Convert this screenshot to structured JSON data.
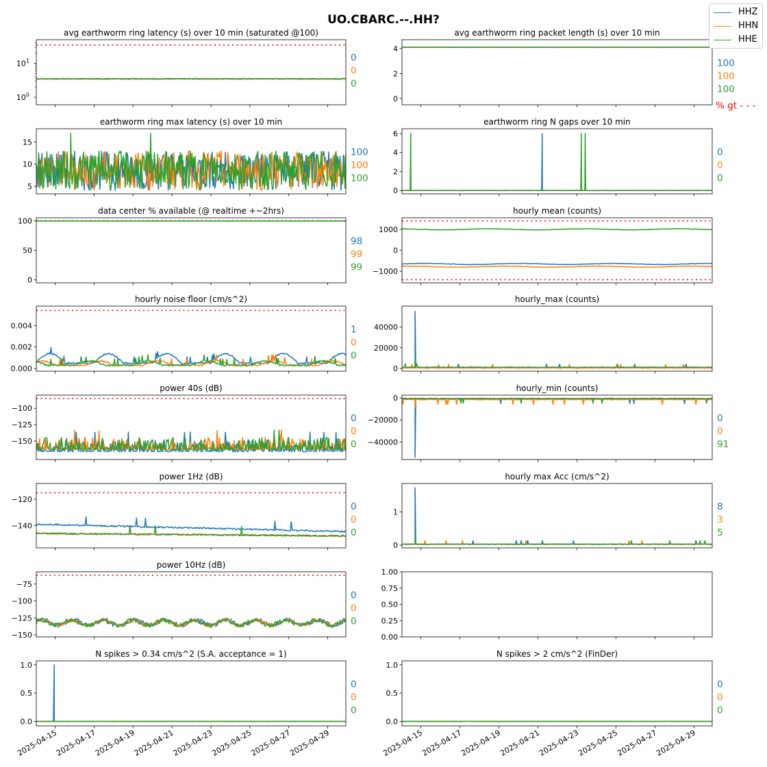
{
  "figure": {
    "title": "UO.CBARC.--.HH?",
    "legend": [
      {
        "name": "HHZ",
        "color": "#1f77b4"
      },
      {
        "name": "HHN",
        "color": "#ff7f0e"
      },
      {
        "name": "HHE",
        "color": "#2ca02c"
      }
    ],
    "x_tick_labels": [
      "2025-04-15",
      "2025-04-17",
      "2025-04-19",
      "2025-04-21",
      "2025-04-23",
      "2025-04-25",
      "2025-04-27",
      "2025-04-29"
    ],
    "x_range": [
      "2025-04-14",
      "2025-04-30"
    ],
    "threshold_color": "#ff0000",
    "pct_gt_label": "% gt - - -"
  },
  "chart_data": [
    {
      "id": "p1",
      "type": "line",
      "title": "avg earthworm ring latency (s)   over 10 min (saturated @100)",
      "yscale": "log",
      "ylim": [
        0.6,
        50
      ],
      "yticks": [
        1,
        10
      ],
      "ytick_labels": [
        "10^0",
        "10^1"
      ],
      "threshold": [
        35
      ],
      "series_levels": [
        3.5,
        3.5,
        3.5
      ],
      "pct_labels": [
        "0",
        "0",
        "0"
      ],
      "style": "flat"
    },
    {
      "id": "p2",
      "type": "line",
      "title": "avg earthworm ring packet length (s)   over 10 min",
      "ylim": [
        -0.5,
        4.7
      ],
      "yticks": [
        0,
        2,
        4
      ],
      "ytick_labels": [
        "0",
        "2",
        "4"
      ],
      "threshold": [],
      "series_levels": [
        4.1,
        4.1,
        4.1
      ],
      "pct_labels": [
        "100",
        "100",
        "100"
      ],
      "style": "flat"
    },
    {
      "id": "p3",
      "type": "line",
      "title": "earthworm ring max latency (s)   over 10 min",
      "ylim": [
        3.3,
        18
      ],
      "yticks": [
        5,
        10,
        15
      ],
      "ytick_labels": [
        "5",
        "10",
        "15"
      ],
      "threshold": [],
      "series_levels": [
        8,
        8,
        8
      ],
      "pct_labels": [
        "100",
        "100",
        "100"
      ],
      "style": "noisy",
      "spikes": [
        {
          "x": 1.8,
          "y": 17,
          "s": 2
        },
        {
          "x": 5.9,
          "y": 17,
          "s": 2
        }
      ]
    },
    {
      "id": "p4",
      "type": "line",
      "title": "earthworm ring N gaps   over 10 min",
      "ylim": [
        -0.35,
        6.5
      ],
      "yticks": [
        0,
        2,
        4,
        6
      ],
      "ytick_labels": [
        "0",
        "2",
        "4",
        "6"
      ],
      "threshold": [
        0
      ],
      "series_levels": [
        0,
        0,
        0
      ],
      "pct_labels": [
        "0",
        "0",
        "0"
      ],
      "style": "flat",
      "spikes": [
        {
          "x": 0.48,
          "y": 6,
          "s": 2
        },
        {
          "x": 7.22,
          "y": 6,
          "s": 0
        },
        {
          "x": 9.22,
          "y": 6,
          "s": 2
        },
        {
          "x": 9.42,
          "y": 6,
          "s": 2
        }
      ]
    },
    {
      "id": "p5",
      "type": "line",
      "title": "data center % available (@ realtime +~2hrs)",
      "ylim": [
        -5,
        105
      ],
      "yticks": [
        0,
        50,
        100
      ],
      "ytick_labels": [
        "0",
        "50",
        "100"
      ],
      "threshold": [
        100
      ],
      "series_levels": [
        99.5,
        99.5,
        99.5
      ],
      "pct_labels": [
        "98",
        "99",
        "99"
      ],
      "style": "flat"
    },
    {
      "id": "p6",
      "type": "line",
      "title": "hourly mean (counts)",
      "ylim": [
        -1550,
        1550
      ],
      "yticks": [
        -1000,
        0,
        1000
      ],
      "ytick_labels": [
        "−1000",
        "0",
        "1000"
      ],
      "threshold": [
        1400,
        -1400
      ],
      "series_levels": [
        -650,
        -780,
        1000
      ],
      "pct_labels": [],
      "style": "gapped"
    },
    {
      "id": "p7",
      "type": "line",
      "title": "hourly noise floor (cm/s^2)",
      "ylim": [
        -0.00025,
        0.0058
      ],
      "yticks": [
        0,
        0.002,
        0.004
      ],
      "ytick_labels": [
        "0.000",
        "0.002",
        "0.004"
      ],
      "threshold": [
        0.0054
      ],
      "series_levels": [
        0.0005,
        0.0003,
        0.0003
      ],
      "pct_labels": [
        "1",
        "0",
        "0"
      ],
      "style": "wavy"
    },
    {
      "id": "p8",
      "type": "line",
      "title": "hourly_max (counts)",
      "ylim": [
        -2500,
        60000
      ],
      "yticks": [
        0,
        20000,
        40000
      ],
      "ytick_labels": [
        "0",
        "20000",
        "40000"
      ],
      "threshold": [],
      "series_levels": [
        800,
        600,
        1300
      ],
      "pct_labels": [],
      "style": "spiky",
      "spikes": [
        {
          "x": 0.7,
          "y": 55000,
          "s": 0
        },
        {
          "x": 0.7,
          "y": 8000,
          "s": 2
        },
        {
          "x": 0.7,
          "y": 6000,
          "s": 1
        }
      ]
    },
    {
      "id": "p9",
      "type": "line",
      "title": "power 40s (dB)",
      "ylim": [
        -178,
        -80
      ],
      "yticks": [
        -150,
        -125,
        -100
      ],
      "ytick_labels": [
        "−150",
        "−125",
        "−100"
      ],
      "threshold": [
        -85
      ],
      "series_levels": [
        -163,
        -160,
        -160
      ],
      "pct_labels": [
        "0",
        "0",
        "0"
      ],
      "style": "noisy-low"
    },
    {
      "id": "p10",
      "type": "line",
      "title": "hourly_min (counts)",
      "ylim": [
        -56000,
        2500
      ],
      "yticks": [
        -40000,
        -20000,
        0
      ],
      "ytick_labels": [
        "−40000",
        "−20000",
        "0"
      ],
      "threshold": [],
      "series_levels": [
        -800,
        -1500,
        -500
      ],
      "pct_labels": [
        "0",
        "0",
        "91"
      ],
      "style": "spiky-neg",
      "spikes": [
        {
          "x": 0.7,
          "y": -54000,
          "s": 0
        },
        {
          "x": 0.7,
          "y": -9000,
          "s": 1
        }
      ]
    },
    {
      "id": "p11",
      "type": "line",
      "title": "power 1Hz (dB)",
      "ylim": [
        -157,
        -108
      ],
      "yticks": [
        -140,
        -120
      ],
      "ytick_labels": [
        "−140",
        "−120"
      ],
      "threshold": [
        -115
      ],
      "series_levels": [
        -144,
        -148,
        -148
      ],
      "pct_labels": [
        "0",
        "0",
        "0"
      ],
      "style": "slope"
    },
    {
      "id": "p12",
      "type": "line",
      "title": "hourly max Acc (cm/s^2)",
      "ylim": [
        -0.08,
        1.85
      ],
      "yticks": [
        0,
        1
      ],
      "ytick_labels": [
        "0",
        "1"
      ],
      "threshold": [
        0.03
      ],
      "series_levels": [
        0.03,
        0.03,
        0.03
      ],
      "pct_labels": [
        "8",
        "3",
        "5"
      ],
      "style": "spiky",
      "spikes": [
        {
          "x": 0.7,
          "y": 1.72,
          "s": 0
        },
        {
          "x": 0.7,
          "y": 0.3,
          "s": 2
        }
      ]
    },
    {
      "id": "p13",
      "type": "line",
      "title": "power 10Hz (dB)",
      "ylim": [
        -153,
        -57
      ],
      "yticks": [
        -150,
        -125,
        -100,
        -75
      ],
      "ytick_labels": [
        "−150",
        "−125",
        "−100",
        "−75"
      ],
      "threshold": [
        -62
      ],
      "series_levels": [
        -132,
        -132,
        -132
      ],
      "pct_labels": [
        "0",
        "0",
        "0"
      ],
      "style": "noisy-mid"
    },
    {
      "id": "p14",
      "type": "line",
      "title": "",
      "ylim": [
        0,
        1
      ],
      "yticks": [
        0,
        0.25,
        0.5,
        0.75,
        1
      ],
      "ytick_labels": [
        "0.00",
        "0.25",
        "0.50",
        "0.75",
        "1.00"
      ],
      "threshold": [],
      "series_levels": [],
      "pct_labels": [],
      "style": "empty"
    },
    {
      "id": "p15",
      "type": "line",
      "title": "N spikes > 0.34 cm/s^2 (S.A. acceptance = 1)",
      "ylim": [
        -0.08,
        1.07
      ],
      "yticks": [
        0,
        0.5,
        1
      ],
      "ytick_labels": [
        "0.0",
        "0.5",
        "1.0"
      ],
      "threshold": [
        0
      ],
      "series_levels": [
        0,
        0,
        0
      ],
      "pct_labels": [
        "0",
        "0",
        "0"
      ],
      "style": "flat",
      "spikes": [
        {
          "x": 0.95,
          "y": 1,
          "s": 0
        }
      ]
    },
    {
      "id": "p16",
      "type": "line",
      "title": "N spikes > 2 cm/s^2 (FinDer)",
      "ylim": [
        -0.08,
        1.07
      ],
      "yticks": [
        0,
        0.5,
        1
      ],
      "ytick_labels": [
        "0.0",
        "0.5",
        "1.0"
      ],
      "threshold": [
        0
      ],
      "series_levels": [
        0,
        0,
        0
      ],
      "pct_labels": [
        "0",
        "0",
        "0"
      ],
      "style": "flat"
    }
  ]
}
